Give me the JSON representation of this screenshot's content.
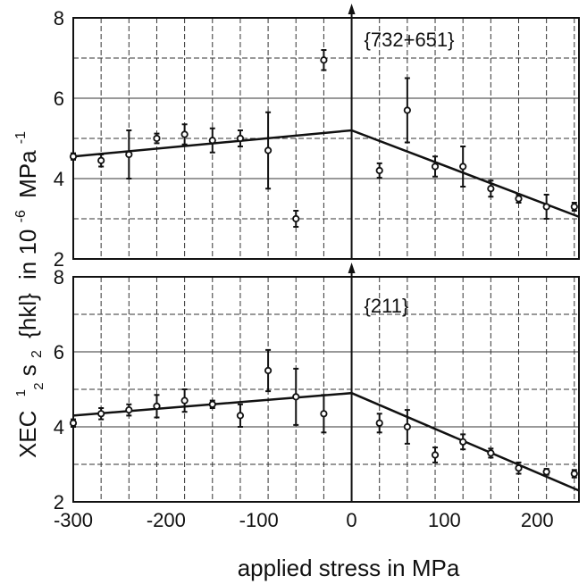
{
  "chart_data": {
    "type": "scatter",
    "xlabel": "applied stress in MPa",
    "ylabel": {
      "prefix": "XEC",
      "frac_num": "1",
      "frac_den": "2",
      "s": "s",
      "sub": "2",
      "hkl": "{hkl}",
      "unit_in": "in 10",
      "exp": "-6",
      "unit": "MPa",
      "unit_exp": "-1"
    },
    "xlim": [
      -300,
      245
    ],
    "x_ticks": [
      -300,
      -200,
      -100,
      0,
      100,
      200
    ],
    "panels": [
      {
        "annotation": "{732+651}",
        "ylim": [
          2,
          8
        ],
        "y_ticks": [
          2,
          4,
          6,
          8
        ],
        "points": [
          {
            "x": -300,
            "y": 4.55,
            "err": 0.08
          },
          {
            "x": -270,
            "y": 4.45,
            "err": 0.15
          },
          {
            "x": -240,
            "y": 4.6,
            "err": 0.6
          },
          {
            "x": -210,
            "y": 5.0,
            "err": 0.12
          },
          {
            "x": -180,
            "y": 5.1,
            "err": 0.25
          },
          {
            "x": -150,
            "y": 4.95,
            "err": 0.3
          },
          {
            "x": -120,
            "y": 5.0,
            "err": 0.2
          },
          {
            "x": -90,
            "y": 4.7,
            "err": 0.95
          },
          {
            "x": -60,
            "y": 3.0,
            "err": 0.2
          },
          {
            "x": -30,
            "y": 6.95,
            "err": 0.25
          },
          {
            "x": 30,
            "y": 4.2,
            "err": 0.18
          },
          {
            "x": 60,
            "y": 5.7,
            "err": 0.8
          },
          {
            "x": 90,
            "y": 4.3,
            "err": 0.25
          },
          {
            "x": 120,
            "y": 4.3,
            "err": 0.5
          },
          {
            "x": 150,
            "y": 3.75,
            "err": 0.2
          },
          {
            "x": 180,
            "y": 3.5,
            "err": 0.1
          },
          {
            "x": 210,
            "y": 3.3,
            "err": 0.3
          },
          {
            "x": 240,
            "y": 3.3,
            "err": 0.1
          }
        ],
        "fit_line": [
          [
            -300,
            4.55
          ],
          [
            0,
            5.2
          ],
          [
            245,
            3.05
          ]
        ]
      },
      {
        "annotation": "{211}",
        "ylim": [
          2,
          8
        ],
        "y_ticks": [
          2,
          4,
          6,
          8
        ],
        "points": [
          {
            "x": -300,
            "y": 4.1,
            "err": 0.1
          },
          {
            "x": -270,
            "y": 4.35,
            "err": 0.15
          },
          {
            "x": -240,
            "y": 4.45,
            "err": 0.15
          },
          {
            "x": -210,
            "y": 4.55,
            "err": 0.3
          },
          {
            "x": -180,
            "y": 4.7,
            "err": 0.3
          },
          {
            "x": -150,
            "y": 4.6,
            "err": 0.1
          },
          {
            "x": -120,
            "y": 4.3,
            "err": 0.3
          },
          {
            "x": -90,
            "y": 5.5,
            "err": 0.55
          },
          {
            "x": -60,
            "y": 4.8,
            "err": 0.75
          },
          {
            "x": -30,
            "y": 4.35,
            "err": 0.5
          },
          {
            "x": 30,
            "y": 4.1,
            "err": 0.25
          },
          {
            "x": 60,
            "y": 4.0,
            "err": 0.45
          },
          {
            "x": 90,
            "y": 3.25,
            "err": 0.2
          },
          {
            "x": 120,
            "y": 3.6,
            "err": 0.2
          },
          {
            "x": 150,
            "y": 3.3,
            "err": 0.12
          },
          {
            "x": 180,
            "y": 2.9,
            "err": 0.15
          },
          {
            "x": 210,
            "y": 2.8,
            "err": 0.08
          },
          {
            "x": 240,
            "y": 2.75,
            "err": 0.1
          }
        ],
        "fit_line": [
          [
            -300,
            4.3
          ],
          [
            0,
            4.9
          ],
          [
            245,
            2.3
          ]
        ]
      }
    ],
    "grid": true,
    "colors": {
      "ink": "#111111",
      "grid": "#333333",
      "background": "#ffffff"
    }
  }
}
